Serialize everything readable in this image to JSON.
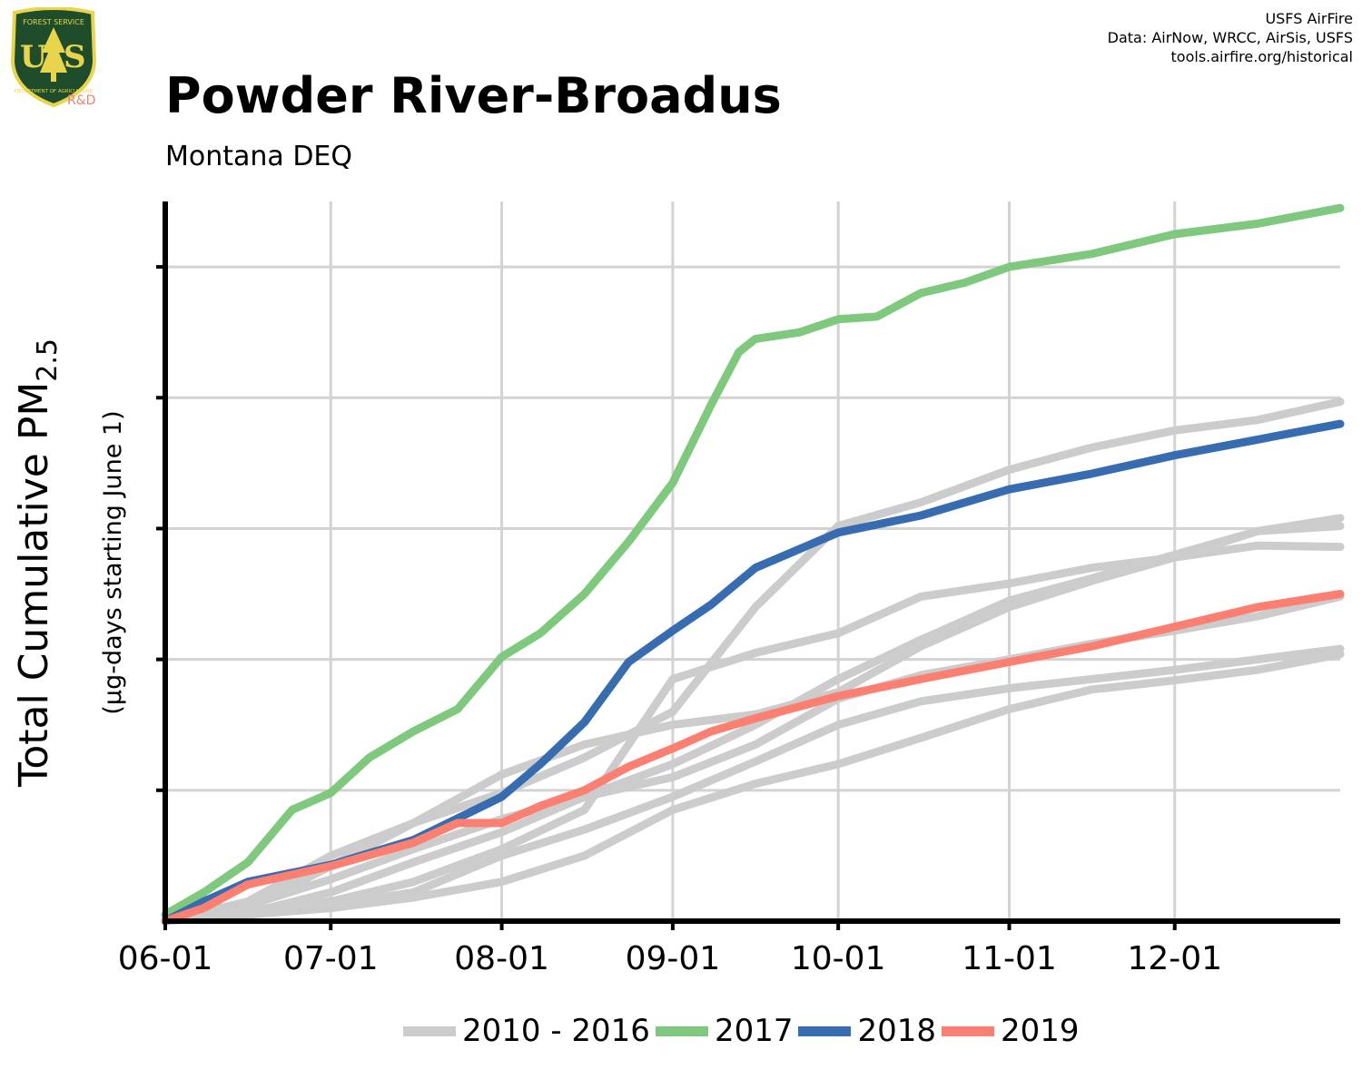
{
  "header": {
    "title": "Powder River-Broadus",
    "subtitle": "Montana DEQ",
    "credits": [
      "USFS AirFire",
      "Data: AirNow, WRCC, AirSis, USFS",
      "tools.airfire.org/historical"
    ]
  },
  "logo": {
    "text_top": "FOREST SERVICE",
    "text_bottom": "DEPARTMENT OF AGRICULTURE",
    "letters": "US",
    "tag": "R&D",
    "colors": {
      "shield": "#1f4d2b",
      "rim": "#e8d44d",
      "text": "#e8d44d",
      "tag": "#f08070"
    }
  },
  "chart_data": {
    "type": "line",
    "title": "Powder River-Broadus",
    "subtitle": "Montana DEQ",
    "ylabel": "Total Cumulative PM",
    "ylabel_sub": "2.5",
    "ylabel_note": "(µg-days starting June 1)",
    "x_type": "date",
    "x_ticks": [
      "06-01",
      "07-01",
      "08-01",
      "09-01",
      "10-01",
      "11-01",
      "12-01"
    ],
    "x_tick_dates": [
      "2000-06-01",
      "2000-07-01",
      "2000-08-01",
      "2000-09-01",
      "2000-10-01",
      "2000-11-01",
      "2000-12-01"
    ],
    "xlim": [
      "2000-06-01",
      "2000-12-31"
    ],
    "ylim": [
      0,
      5.5
    ],
    "y_grid": [
      1,
      2,
      3,
      4,
      5
    ],
    "grid": true,
    "legend_position": "bottom",
    "series": [
      {
        "name": "2010 - 2016",
        "color": "#cccccc",
        "points": [
          [
            "06-01",
            0.02
          ],
          [
            "06-16",
            0.12
          ],
          [
            "07-01",
            0.32
          ],
          [
            "07-16",
            0.55
          ],
          [
            "08-01",
            0.78
          ],
          [
            "08-16",
            0.95
          ],
          [
            "09-01",
            1.1
          ],
          [
            "09-16",
            1.35
          ],
          [
            "10-01",
            1.7
          ],
          [
            "10-16",
            1.88
          ],
          [
            "11-01",
            2.0
          ],
          [
            "11-16",
            2.12
          ],
          [
            "12-01",
            2.22
          ],
          [
            "12-16",
            2.33
          ],
          [
            "12-31",
            2.48
          ]
        ]
      },
      {
        "name": "2010 - 2016",
        "color": "#cccccc",
        "points": [
          [
            "06-01",
            0.0
          ],
          [
            "06-16",
            0.05
          ],
          [
            "07-01",
            0.1
          ],
          [
            "07-16",
            0.18
          ],
          [
            "08-01",
            0.3
          ],
          [
            "08-16",
            0.5
          ],
          [
            "09-01",
            0.85
          ],
          [
            "09-16",
            1.05
          ],
          [
            "10-01",
            1.2
          ],
          [
            "10-16",
            1.4
          ],
          [
            "11-01",
            1.62
          ],
          [
            "11-16",
            1.77
          ],
          [
            "12-01",
            1.84
          ],
          [
            "12-16",
            1.92
          ],
          [
            "12-31",
            2.04
          ]
        ]
      },
      {
        "name": "2010 - 2016",
        "color": "#cccccc",
        "points": [
          [
            "06-01",
            0.0
          ],
          [
            "06-16",
            0.08
          ],
          [
            "07-01",
            0.15
          ],
          [
            "07-16",
            0.3
          ],
          [
            "08-01",
            0.55
          ],
          [
            "08-16",
            0.85
          ],
          [
            "09-01",
            1.85
          ],
          [
            "09-16",
            2.05
          ],
          [
            "10-01",
            2.2
          ],
          [
            "10-16",
            2.48
          ],
          [
            "11-01",
            2.58
          ],
          [
            "11-16",
            2.7
          ],
          [
            "12-01",
            2.78
          ],
          [
            "12-16",
            2.87
          ],
          [
            "12-31",
            2.86
          ]
        ]
      },
      {
        "name": "2010 - 2016",
        "color": "#cccccc",
        "points": [
          [
            "06-01",
            0.0
          ],
          [
            "06-16",
            0.15
          ],
          [
            "07-01",
            0.5
          ],
          [
            "07-16",
            0.75
          ],
          [
            "08-01",
            0.98
          ],
          [
            "08-16",
            1.25
          ],
          [
            "09-01",
            1.6
          ],
          [
            "09-16",
            2.4
          ],
          [
            "10-01",
            3.02
          ],
          [
            "10-16",
            3.2
          ],
          [
            "11-01",
            3.45
          ],
          [
            "11-16",
            3.62
          ],
          [
            "12-01",
            3.75
          ],
          [
            "12-16",
            3.83
          ],
          [
            "12-31",
            3.97
          ]
        ]
      },
      {
        "name": "2010 - 2016",
        "color": "#cccccc",
        "points": [
          [
            "06-01",
            0.0
          ],
          [
            "06-16",
            0.1
          ],
          [
            "07-01",
            0.42
          ],
          [
            "07-16",
            0.75
          ],
          [
            "08-01",
            1.12
          ],
          [
            "08-16",
            1.35
          ],
          [
            "09-01",
            1.5
          ],
          [
            "09-16",
            1.58
          ],
          [
            "10-01",
            1.75
          ],
          [
            "10-16",
            2.1
          ],
          [
            "11-01",
            2.4
          ],
          [
            "11-16",
            2.6
          ],
          [
            "12-01",
            2.78
          ],
          [
            "12-16",
            2.98
          ],
          [
            "12-31",
            3.08
          ]
        ]
      },
      {
        "name": "2010 - 2016",
        "color": "#cccccc",
        "points": [
          [
            "06-01",
            0.0
          ],
          [
            "06-16",
            0.06
          ],
          [
            "07-01",
            0.22
          ],
          [
            "07-16",
            0.45
          ],
          [
            "08-01",
            0.68
          ],
          [
            "08-16",
            0.95
          ],
          [
            "09-01",
            1.2
          ],
          [
            "09-16",
            1.5
          ],
          [
            "10-01",
            1.85
          ],
          [
            "10-16",
            2.15
          ],
          [
            "11-01",
            2.45
          ],
          [
            "11-16",
            2.62
          ],
          [
            "12-01",
            2.8
          ],
          [
            "12-16",
            2.98
          ],
          [
            "12-31",
            3.02
          ]
        ]
      },
      {
        "name": "2010 - 2016",
        "color": "#cccccc",
        "points": [
          [
            "06-01",
            0.0
          ],
          [
            "06-16",
            0.05
          ],
          [
            "07-01",
            0.12
          ],
          [
            "07-16",
            0.22
          ],
          [
            "08-01",
            0.5
          ],
          [
            "08-16",
            0.7
          ],
          [
            "09-01",
            0.95
          ],
          [
            "09-16",
            1.22
          ],
          [
            "10-01",
            1.5
          ],
          [
            "10-16",
            1.68
          ],
          [
            "11-01",
            1.78
          ],
          [
            "11-16",
            1.85
          ],
          [
            "12-01",
            1.92
          ],
          [
            "12-16",
            2.0
          ],
          [
            "12-31",
            2.08
          ]
        ]
      },
      {
        "name": "2017",
        "color": "#7fc97f",
        "points": [
          [
            "06-01",
            0.05
          ],
          [
            "06-08",
            0.22
          ],
          [
            "06-16",
            0.45
          ],
          [
            "06-24",
            0.85
          ],
          [
            "07-01",
            0.98
          ],
          [
            "07-08",
            1.25
          ],
          [
            "07-16",
            1.45
          ],
          [
            "07-24",
            1.62
          ],
          [
            "08-01",
            2.02
          ],
          [
            "08-08",
            2.2
          ],
          [
            "08-16",
            2.5
          ],
          [
            "08-24",
            2.9
          ],
          [
            "09-01",
            3.35
          ],
          [
            "09-08",
            3.95
          ],
          [
            "09-13",
            4.35
          ],
          [
            "09-16",
            4.45
          ],
          [
            "09-24",
            4.5
          ],
          [
            "10-01",
            4.6
          ],
          [
            "10-08",
            4.62
          ],
          [
            "10-16",
            4.8
          ],
          [
            "10-24",
            4.88
          ],
          [
            "11-01",
            5.0
          ],
          [
            "11-16",
            5.1
          ],
          [
            "12-01",
            5.25
          ],
          [
            "12-16",
            5.33
          ],
          [
            "12-31",
            5.45
          ]
        ]
      },
      {
        "name": "2018",
        "color": "#386cb0",
        "points": [
          [
            "06-01",
            0.0
          ],
          [
            "06-08",
            0.15
          ],
          [
            "06-16",
            0.3
          ],
          [
            "07-01",
            0.43
          ],
          [
            "07-16",
            0.62
          ],
          [
            "08-01",
            0.95
          ],
          [
            "08-08",
            1.2
          ],
          [
            "08-16",
            1.52
          ],
          [
            "08-24",
            1.98
          ],
          [
            "09-01",
            2.22
          ],
          [
            "09-08",
            2.42
          ],
          [
            "09-16",
            2.7
          ],
          [
            "10-01",
            2.97
          ],
          [
            "10-16",
            3.1
          ],
          [
            "11-01",
            3.3
          ],
          [
            "11-16",
            3.42
          ],
          [
            "12-01",
            3.56
          ],
          [
            "12-16",
            3.68
          ],
          [
            "12-31",
            3.8
          ]
        ]
      },
      {
        "name": "2019",
        "color": "#fb8072",
        "points": [
          [
            "06-01",
            0.0
          ],
          [
            "06-08",
            0.1
          ],
          [
            "06-16",
            0.28
          ],
          [
            "07-01",
            0.42
          ],
          [
            "07-16",
            0.6
          ],
          [
            "07-24",
            0.75
          ],
          [
            "08-01",
            0.75
          ],
          [
            "08-08",
            0.88
          ],
          [
            "08-16",
            1.0
          ],
          [
            "08-24",
            1.18
          ],
          [
            "09-01",
            1.32
          ],
          [
            "09-08",
            1.45
          ],
          [
            "09-16",
            1.55
          ],
          [
            "10-01",
            1.72
          ],
          [
            "10-16",
            1.85
          ],
          [
            "11-01",
            1.98
          ],
          [
            "11-16",
            2.1
          ],
          [
            "12-01",
            2.25
          ],
          [
            "12-16",
            2.4
          ],
          [
            "12-31",
            2.5
          ]
        ]
      }
    ],
    "legend": [
      {
        "label": "2010 - 2016",
        "color": "#cccccc"
      },
      {
        "label": "2017",
        "color": "#7fc97f"
      },
      {
        "label": "2018",
        "color": "#386cb0"
      },
      {
        "label": "2019",
        "color": "#fb8072"
      }
    ]
  }
}
